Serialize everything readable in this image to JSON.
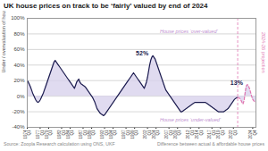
{
  "chart_data": {
    "type": "line",
    "title": "UK house prices on track to be ‘fairly’ valued by end of 2024",
    "ylabel": "Under / overvaluation of house prices",
    "caption": [
      "Source: Zoopla Research calculation using ONS, UKF",
      "Difference between actual & affordable house prices"
    ],
    "categories": [
      "1974\nQ1",
      null,
      null,
      null,
      null,
      null,
      null,
      null,
      null,
      null,
      null,
      null,
      "1977\nQ1",
      null,
      null,
      null,
      null,
      null,
      null,
      null,
      "1979\nQ1",
      null,
      null,
      null,
      null,
      null,
      null,
      null,
      null,
      null,
      null,
      null,
      "1982\nQ1",
      null,
      null,
      null,
      null,
      null,
      null,
      null,
      "1984\nQ1",
      null,
      null,
      null,
      null,
      null,
      null,
      null,
      null,
      null,
      null,
      null,
      "1987\nQ1",
      null,
      null,
      null,
      null,
      null,
      null,
      null,
      "1989\nQ1",
      null,
      null,
      null,
      null,
      null,
      null,
      null,
      null,
      null,
      null,
      null,
      "1992\nQ1",
      null,
      null,
      null,
      null,
      null,
      null,
      null,
      "1994\nQ1",
      null,
      null,
      null,
      null,
      null,
      null,
      null,
      null,
      null,
      null,
      null,
      "1997\nQ1",
      null,
      null,
      null,
      null,
      null,
      null,
      null,
      "1999\nQ1",
      null,
      null,
      null,
      null,
      null,
      null,
      null,
      null,
      null,
      null,
      null,
      "2002\nQ1",
      null,
      null,
      null,
      null,
      null,
      null,
      null,
      "2004\nQ1",
      null,
      null,
      null,
      null,
      null,
      null,
      null,
      null,
      null,
      null,
      null,
      "2007\nQ1",
      null,
      null,
      null,
      null,
      null,
      null,
      null,
      "2009\nQ1",
      null,
      null,
      null,
      null,
      null,
      null,
      null,
      null,
      null,
      null,
      null,
      "2012\nQ1",
      null,
      null,
      null,
      null,
      null,
      null,
      null,
      "2014\nQ1",
      null,
      null,
      null,
      null,
      null,
      null,
      null,
      null,
      null,
      null,
      null,
      "2017\nQ1",
      null,
      null,
      null,
      null,
      null,
      null,
      null,
      "2019\nQ1",
      null,
      null,
      null,
      null,
      null,
      null,
      null,
      null,
      null,
      null,
      null,
      "2022\nQ1",
      null,
      null,
      null,
      null,
      null,
      null,
      null,
      null,
      null,
      null,
      null,
      null,
      null,
      null,
      null,
      null,
      null,
      "2024\nQ4",
      null,
      null,
      null
    ],
    "series": [
      {
        "type": "area",
        "color": "#d8d2ec",
        "values": [
          20,
          18,
          15,
          12,
          8,
          4,
          1,
          -2,
          -5,
          -7,
          -8,
          -7,
          -5,
          -2,
          1,
          4,
          8,
          12,
          16,
          20,
          24,
          28,
          32,
          36,
          40,
          44,
          46,
          44,
          42,
          40,
          38,
          36,
          34,
          32,
          30,
          28,
          26,
          24,
          22,
          20,
          18,
          16,
          14,
          12,
          10,
          14,
          18,
          20,
          22,
          18,
          16,
          15,
          14,
          13,
          12,
          10,
          8,
          6,
          4,
          2,
          0,
          -2,
          -5,
          -8,
          -12,
          -16,
          -18,
          -20,
          -22,
          -23,
          -24,
          -25,
          -24,
          -22,
          -20,
          -18,
          -16,
          -14,
          -12,
          -10,
          -8,
          -6,
          -4,
          -2,
          0,
          2,
          4,
          6,
          8,
          10,
          12,
          14,
          16,
          18,
          20,
          22,
          24,
          26,
          28,
          30,
          28,
          26,
          24,
          22,
          20,
          18,
          16,
          14,
          12,
          10,
          14,
          18,
          24,
          32,
          40,
          46,
          50,
          52,
          50,
          48,
          44,
          40,
          36,
          32,
          28,
          24,
          20,
          16,
          12,
          8,
          6,
          4,
          2,
          0,
          -2,
          -4,
          -6,
          -8,
          -10,
          -12,
          -14,
          -16,
          -18,
          -20,
          -20,
          -19,
          -18,
          -17,
          -16,
          -15,
          -14,
          -13,
          -12,
          -11,
          -10,
          -9,
          -8,
          -8,
          -8,
          -8,
          -8,
          -8,
          -8,
          -8,
          -8,
          -8,
          -8,
          -9,
          -10,
          -11,
          -12,
          -13,
          -14,
          -15,
          -16,
          -17,
          -18,
          -19,
          -20,
          -20,
          -20,
          -20,
          -20,
          -20,
          -19,
          -18,
          -17,
          -16,
          -14,
          -12,
          -10,
          -8,
          -6,
          -4,
          -3,
          -2,
          -2,
          -2,
          -3,
          -5,
          -8,
          -10,
          -5,
          5,
          13,
          15,
          13,
          10,
          5,
          0,
          -4,
          -6,
          -7,
          -8
        ]
      },
      {
        "type": "line",
        "color": "#1a1a4e",
        "line_style": "solid",
        "values": [
          20,
          18,
          15,
          12,
          8,
          4,
          1,
          -2,
          -5,
          -7,
          -8,
          -7,
          -5,
          -2,
          1,
          4,
          8,
          12,
          16,
          20,
          24,
          28,
          32,
          36,
          40,
          44,
          46,
          44,
          42,
          40,
          38,
          36,
          34,
          32,
          30,
          28,
          26,
          24,
          22,
          20,
          18,
          16,
          14,
          12,
          10,
          14,
          18,
          20,
          22,
          18,
          16,
          15,
          14,
          13,
          12,
          10,
          8,
          6,
          4,
          2,
          0,
          -2,
          -5,
          -8,
          -12,
          -16,
          -18,
          -20,
          -22,
          -23,
          -24,
          -25,
          -24,
          -22,
          -20,
          -18,
          -16,
          -14,
          -12,
          -10,
          -8,
          -6,
          -4,
          -2,
          0,
          2,
          4,
          6,
          8,
          10,
          12,
          14,
          16,
          18,
          20,
          22,
          24,
          26,
          28,
          30,
          28,
          26,
          24,
          22,
          20,
          18,
          16,
          14,
          12,
          10,
          14,
          18,
          24,
          32,
          40,
          46,
          50,
          52,
          50,
          48,
          44,
          40,
          36,
          32,
          28,
          24,
          20,
          16,
          12,
          8,
          6,
          4,
          2,
          0,
          -2,
          -4,
          -6,
          -8,
          -10,
          -12,
          -14,
          -16,
          -18,
          -20,
          -20,
          -19,
          -18,
          -17,
          -16,
          -15,
          -14,
          -13,
          -12,
          -11,
          -10,
          -9,
          -8,
          -8,
          -8,
          -8,
          -8,
          -8,
          -8,
          -8,
          -8,
          -8,
          -8,
          -9,
          -10,
          -11,
          -12,
          -13,
          -14,
          -15,
          -16,
          -17,
          -18,
          -19,
          -20,
          -20,
          -20,
          -20,
          -20,
          -20,
          -19,
          -18,
          -17,
          -16,
          -14,
          -12,
          -10,
          -8,
          -6,
          -4,
          -3,
          -2,
          -2,
          null,
          null,
          null,
          null,
          null,
          null,
          null,
          null,
          null,
          null,
          null,
          null,
          null,
          null,
          null,
          null,
          null
        ]
      },
      {
        "type": "line",
        "name": "2024-26 projection",
        "color": "#e075b0",
        "line_style": "dashed",
        "values": [
          null,
          null,
          null,
          null,
          null,
          null,
          null,
          null,
          null,
          null,
          null,
          null,
          null,
          null,
          null,
          null,
          null,
          null,
          null,
          null,
          null,
          null,
          null,
          null,
          null,
          null,
          null,
          null,
          null,
          null,
          null,
          null,
          null,
          null,
          null,
          null,
          null,
          null,
          null,
          null,
          null,
          null,
          null,
          null,
          null,
          null,
          null,
          null,
          null,
          null,
          null,
          null,
          null,
          null,
          null,
          null,
          null,
          null,
          null,
          null,
          null,
          null,
          null,
          null,
          null,
          null,
          null,
          null,
          null,
          null,
          null,
          null,
          null,
          null,
          null,
          null,
          null,
          null,
          null,
          null,
          null,
          null,
          null,
          null,
          null,
          null,
          null,
          null,
          null,
          null,
          null,
          null,
          null,
          null,
          null,
          null,
          null,
          null,
          null,
          null,
          null,
          null,
          null,
          null,
          null,
          null,
          null,
          null,
          null,
          null,
          null,
          null,
          null,
          null,
          null,
          null,
          null,
          null,
          null,
          null,
          null,
          null,
          null,
          null,
          null,
          null,
          null,
          null,
          null,
          null,
          null,
          null,
          null,
          null,
          null,
          null,
          null,
          null,
          null,
          null,
          null,
          null,
          null,
          null,
          null,
          null,
          null,
          null,
          null,
          null,
          null,
          null,
          null,
          null,
          null,
          null,
          null,
          null,
          null,
          null,
          null,
          null,
          null,
          null,
          null,
          null,
          null,
          null,
          null,
          null,
          null,
          null,
          null,
          null,
          null,
          null,
          null,
          null,
          null,
          null,
          null,
          null,
          null,
          null,
          null,
          null,
          null,
          null,
          null,
          null,
          null,
          null,
          null,
          null,
          null,
          null,
          -2,
          -2,
          -3,
          -5,
          -8,
          -10,
          -5,
          5,
          13,
          15,
          13,
          10,
          5,
          0,
          -4,
          -6,
          -7,
          -8
        ]
      }
    ],
    "ylim": [
      -40,
      100
    ],
    "yticks": [
      {
        "value": -40,
        "label": "-40%"
      },
      {
        "value": -20,
        "label": "-20%"
      },
      {
        "value": 0,
        "label": "0%"
      },
      {
        "value": 20,
        "label": "20%"
      },
      {
        "value": 40,
        "label": "40%"
      },
      {
        "value": 60,
        "label": "60%"
      },
      {
        "value": 80,
        "label": "80%"
      },
      {
        "value": 100,
        "label": "100%"
      }
    ],
    "grid": true,
    "annotations": [
      {
        "text": "House prices ‘over-valued’",
        "color": "#c090d0"
      },
      {
        "text": "House prices ‘under-valued’",
        "color": "#c090d0"
      },
      {
        "text": "52%",
        "x": 107,
        "y": 52,
        "color": "#1a1a4e"
      },
      {
        "text": "13%",
        "x": 195,
        "y": 15,
        "color": "#1a1a4e"
      }
    ]
  }
}
